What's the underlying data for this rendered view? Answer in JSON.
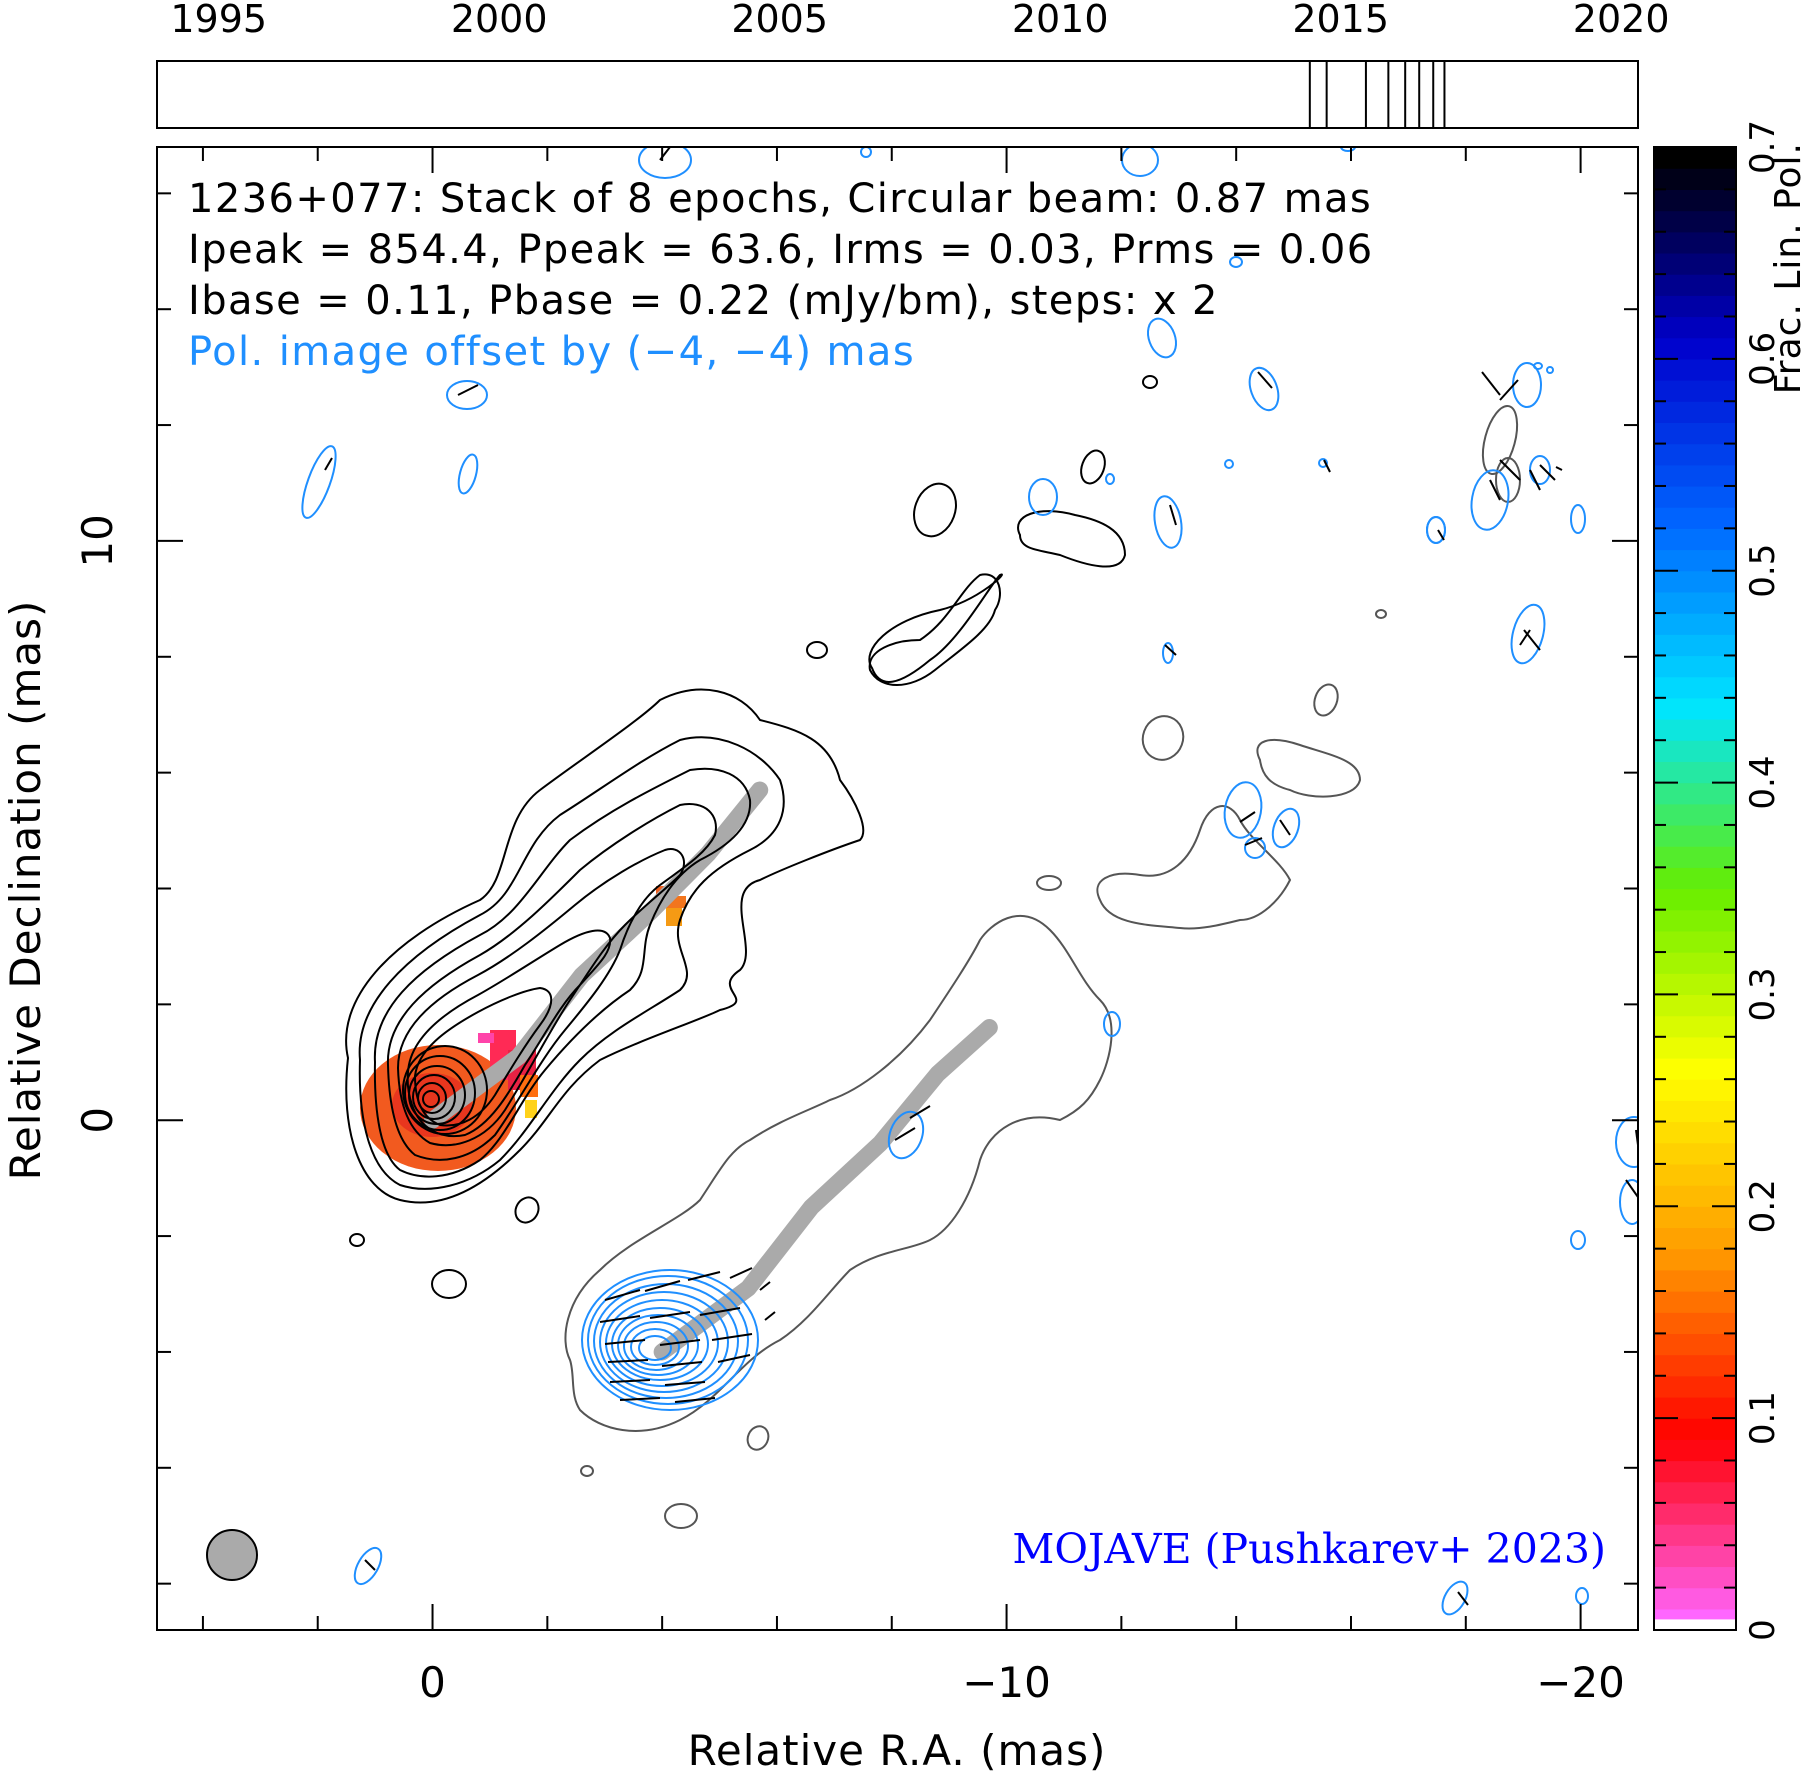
{
  "chart_data": {
    "type": "contour",
    "source": "1236+077",
    "annotation_lines": [
      "1236+077: Stack of 8 epochs, Circular beam: 0.87 mas",
      "Ipeak = 854.4, Ppeak = 63.6, Irms = 0.03, Prms = 0.06",
      "Ibase = 0.11, Pbase = 0.22 (mJy/bm), steps: x 2"
    ],
    "offset_note": "Pol. image offset by (−4, −4) mas",
    "credit": "MOJAVE (Pushkarev+ 2023)",
    "xlabel": "Relative R.A. (mas)",
    "ylabel": "Relative Declination (mas)",
    "xlim": [
      4.8,
      -21
    ],
    "ylim": [
      -8.8,
      16.8
    ],
    "x_ticklabels": [
      {
        "value": 0,
        "label": "0"
      },
      {
        "value": -10,
        "label": "−10"
      },
      {
        "value": -20,
        "label": "−20"
      }
    ],
    "y_ticklabels": [
      {
        "value": 0,
        "label": "0"
      },
      {
        "value": 10,
        "label": "10"
      }
    ],
    "ridge_line": [
      [
        0,
        0
      ],
      [
        -1.5,
        1.1
      ],
      [
        -2.6,
        2.5
      ],
      [
        -3.8,
        3.6
      ],
      [
        -4.8,
        4.6
      ],
      [
        -5.7,
        5.7
      ]
    ],
    "pol_ridge_line": [
      [
        -4,
        -4
      ],
      [
        -5.5,
        -2.9
      ],
      [
        -6.6,
        -1.5
      ],
      [
        -7.8,
        -0.4
      ],
      [
        -8.8,
        0.8
      ],
      [
        -9.7,
        1.6
      ]
    ],
    "timeline": {
      "range": [
        1993.9,
        2020.3
      ],
      "tick_labels": [
        "1995",
        "2000",
        "2005",
        "2010",
        "2015",
        "2020"
      ],
      "tick_years": [
        1995,
        2000,
        2005,
        2010,
        2015,
        2020
      ],
      "epochs": [
        2014.45,
        2014.75,
        2015.45,
        2015.85,
        2016.15,
        2016.4,
        2016.65,
        2016.85
      ]
    },
    "colorbar": {
      "label": "Frac. Lin. Pol.",
      "range": [
        0,
        0.7
      ],
      "tick_labels": [
        "0",
        "0.1",
        "0.2",
        "0.3",
        "0.4",
        "0.5",
        "0.6",
        "0.7"
      ],
      "ticks": [
        0,
        0.1,
        0.2,
        0.3,
        0.4,
        0.5,
        0.6,
        0.7
      ],
      "colors": [
        "#ff66ff",
        "#ff0000",
        "#ff9900",
        "#ffff00",
        "#66ee00",
        "#00e5ff",
        "#0066ff",
        "#0000cc",
        "#000000"
      ]
    },
    "colors": {
      "total_intensity_contours": "#000000",
      "polarized_contours": "#1f8fff",
      "ridge": "#aaaaaa",
      "credit_text": "#0000ff",
      "offset_note": "#1f8fff"
    },
    "beam_fill": "#aaaaaa"
  }
}
